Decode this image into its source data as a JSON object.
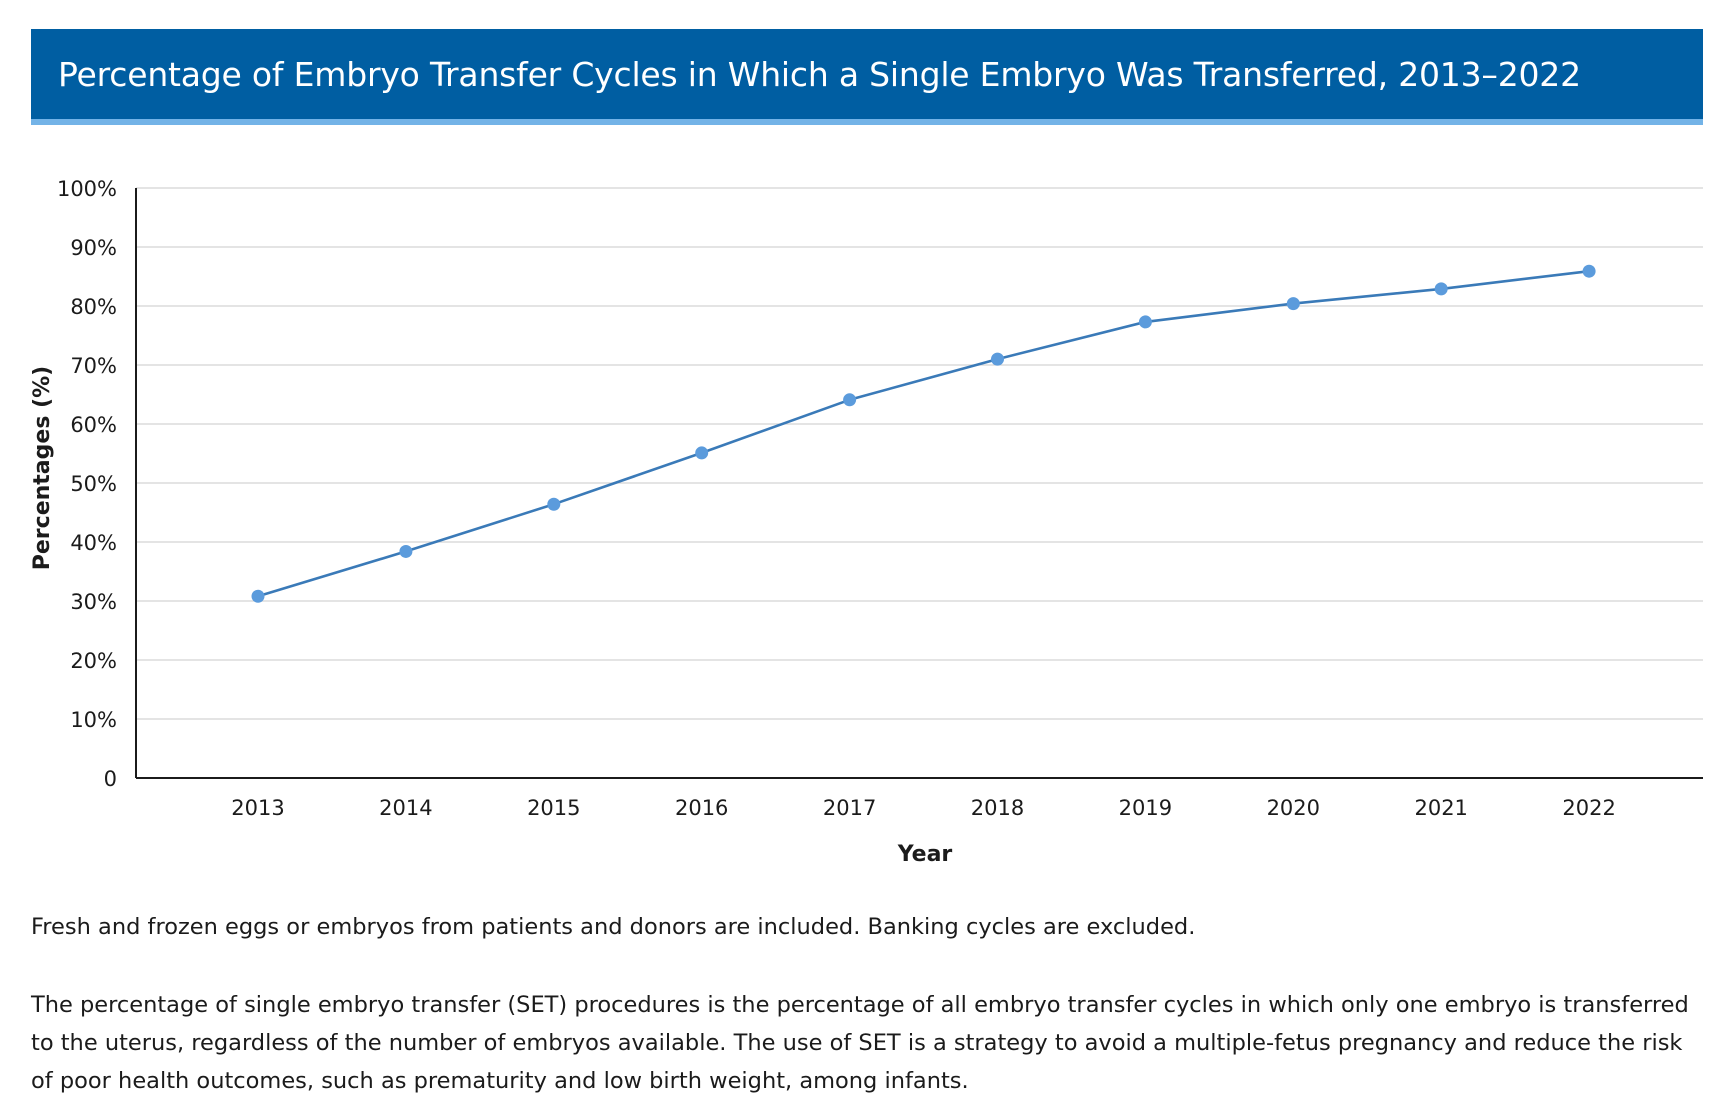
{
  "chart_data": {
    "type": "line",
    "title": "Percentage of Embryo Transfer Cycles in Which a Single Embryo Was Transferred, 2013–2022",
    "xlabel": "Year",
    "ylabel": "Percentages (%)",
    "categories": [
      "2013",
      "2014",
      "2015",
      "2016",
      "2017",
      "2018",
      "2019",
      "2020",
      "2021",
      "2022"
    ],
    "values": [
      30.8,
      38.4,
      46.4,
      55.1,
      64.1,
      71.0,
      77.3,
      80.4,
      82.9,
      85.9
    ],
    "ylim": [
      0,
      100
    ],
    "yticks": [
      "0",
      "10%",
      "20%",
      "30%",
      "40%",
      "50%",
      "60%",
      "70%",
      "80%",
      "90%",
      "100%"
    ],
    "grid": true,
    "legend": "none",
    "colors": {
      "line": "#3a7ab8",
      "marker": "#5b9bdc",
      "grid": "#d4d4d4",
      "axis": "#1b1b1b",
      "title_bg": "#005ea2",
      "title_border": "#73b3e7"
    }
  },
  "notes": [
    "Fresh and frozen eggs or embryos from patients and donors are included. Banking cycles are excluded.",
    "The percentage of single embryo transfer (SET) procedures is the percentage of all embryo transfer cycles in which only one embryo is transferred to the uterus, regardless of the number of embryos available. The use of SET is a strategy to avoid a multiple-fetus pregnancy and reduce the risk of poor health outcomes, such as prematurity and low birth weight, among infants."
  ]
}
